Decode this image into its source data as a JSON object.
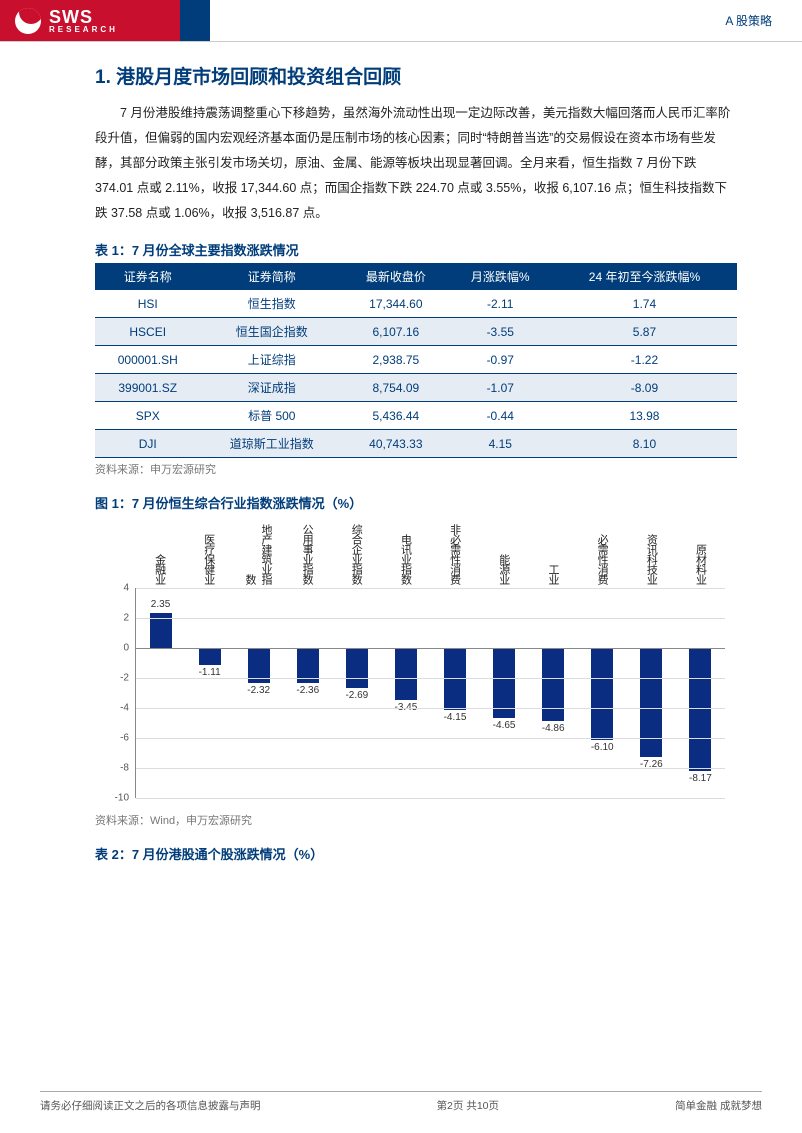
{
  "header": {
    "logo_main": "SWS",
    "logo_sub": "RESEARCH",
    "right_text": "A 股策略"
  },
  "section_title": "1. 港股月度市场回顾和投资组合回顾",
  "body_text": "7 月份港股维持震荡调整重心下移趋势，虽然海外流动性出现一定边际改善，美元指数大幅回落而人民币汇率阶段升值，但偏弱的国内宏观经济基本面仍是压制市场的核心因素；同时“特朗普当选”的交易假设在资本市场有些发酵，其部分政策主张引发市场关切，原油、金属、能源等板块出现显著回调。全月来看，恒生指数 7 月份下跌 374.01 点或 2.11%，收报 17,344.60 点；而国企指数下跌 224.70 点或 3.55%，收报 6,107.16 点；恒生科技指数下跌 37.58 点或 1.06%，收报 3,516.87 点。",
  "table1": {
    "caption": "表 1：7 月份全球主要指数涨跌情况",
    "columns": [
      "证券名称",
      "证券简称",
      "最新收盘价",
      "月涨跌幅%",
      "24 年初至今涨跌幅%"
    ],
    "rows": [
      [
        "HSI",
        "恒生指数",
        "17,344.60",
        "-2.11",
        "1.74"
      ],
      [
        "HSCEI",
        "恒生国企指数",
        "6,107.16",
        "-3.55",
        "5.87"
      ],
      [
        "000001.SH",
        "上证综指",
        "2,938.75",
        "-0.97",
        "-1.22"
      ],
      [
        "399001.SZ",
        "深证成指",
        "8,754.09",
        "-1.07",
        "-8.09"
      ],
      [
        "SPX",
        "标普 500",
        "5,436.44",
        "-0.44",
        "13.98"
      ],
      [
        "DJI",
        "道琼斯工业指数",
        "40,743.33",
        "4.15",
        "8.10"
      ]
    ],
    "source": "资料来源：申万宏源研究"
  },
  "chart1": {
    "caption": "图 1：7 月份恒生综合行业指数涨跌情况（%）",
    "ylim": [
      -10,
      4
    ],
    "ytick_step": 2,
    "bar_color": "#0a2d82",
    "grid_color": "#dddddd",
    "categories": [
      "金融业",
      "医疗保健业",
      "地产建筑业指数",
      "公用事业指数",
      "综合企业指数",
      "电讯业指数",
      "非必需性消费",
      "能源业",
      "工业",
      "必需性消费",
      "资讯科技业",
      "原材料业"
    ],
    "values": [
      2.35,
      -1.11,
      -2.32,
      -2.36,
      -2.69,
      -3.45,
      -4.15,
      -4.65,
      -4.86,
      -6.1,
      -7.26,
      -8.17
    ],
    "source": "资料来源：Wind，申万宏源研究"
  },
  "table2_caption": "表 2：7 月份港股通个股涨跌情况（%）",
  "footer": {
    "left": "请务必仔细阅读正文之后的各项信息披露与声明",
    "center": "第2页 共10页",
    "right": "简单金融 成就梦想"
  }
}
